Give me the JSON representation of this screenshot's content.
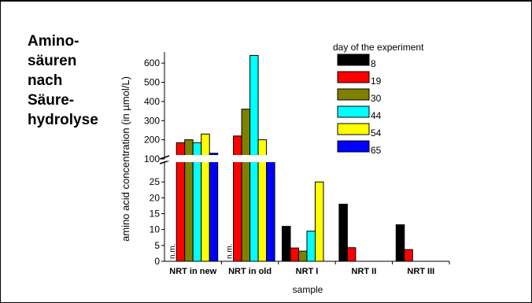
{
  "side_title": [
    "Amino-",
    "säuren",
    "nach",
    "Säure-",
    "hydrolyse"
  ],
  "chart_data": {
    "type": "bar",
    "title": "",
    "xlabel": "sample",
    "ylabel": "amino acid concentration (in µmol/L)",
    "categories": [
      "NRT in new",
      "NRT in old",
      "NRT I",
      "NRT II",
      "NRT III"
    ],
    "legend_title": "day of the experiment",
    "legend_position": "top-right",
    "broken_axis": true,
    "lower_ylim": [
      0,
      30
    ],
    "lower_yticks": [
      0,
      5,
      10,
      15,
      20,
      25
    ],
    "upper_ylim": [
      100,
      650
    ],
    "upper_yticks": [
      100,
      200,
      300,
      400,
      500,
      600
    ],
    "not_measured_label": "n.m.",
    "not_measured": [
      {
        "category": 0,
        "series": 0
      },
      {
        "category": 1,
        "series": 0
      }
    ],
    "series": [
      {
        "name": "8",
        "color": "#000000",
        "values": [
          null,
          null,
          11,
          18,
          11.5
        ]
      },
      {
        "name": "19",
        "color": "#ff0000",
        "values": [
          185,
          220,
          4.2,
          4.3,
          3.7
        ]
      },
      {
        "name": "30",
        "color": "#808000",
        "values": [
          200,
          360,
          3.2,
          null,
          null
        ]
      },
      {
        "name": "44",
        "color": "#00ffff",
        "values": [
          185,
          640,
          9.5,
          null,
          null
        ]
      },
      {
        "name": "54",
        "color": "#ffff00",
        "values": [
          230,
          200,
          25,
          null,
          null
        ]
      },
      {
        "name": "65",
        "color": "#0000ff",
        "values": [
          130,
          115,
          null,
          null,
          null
        ]
      }
    ]
  }
}
